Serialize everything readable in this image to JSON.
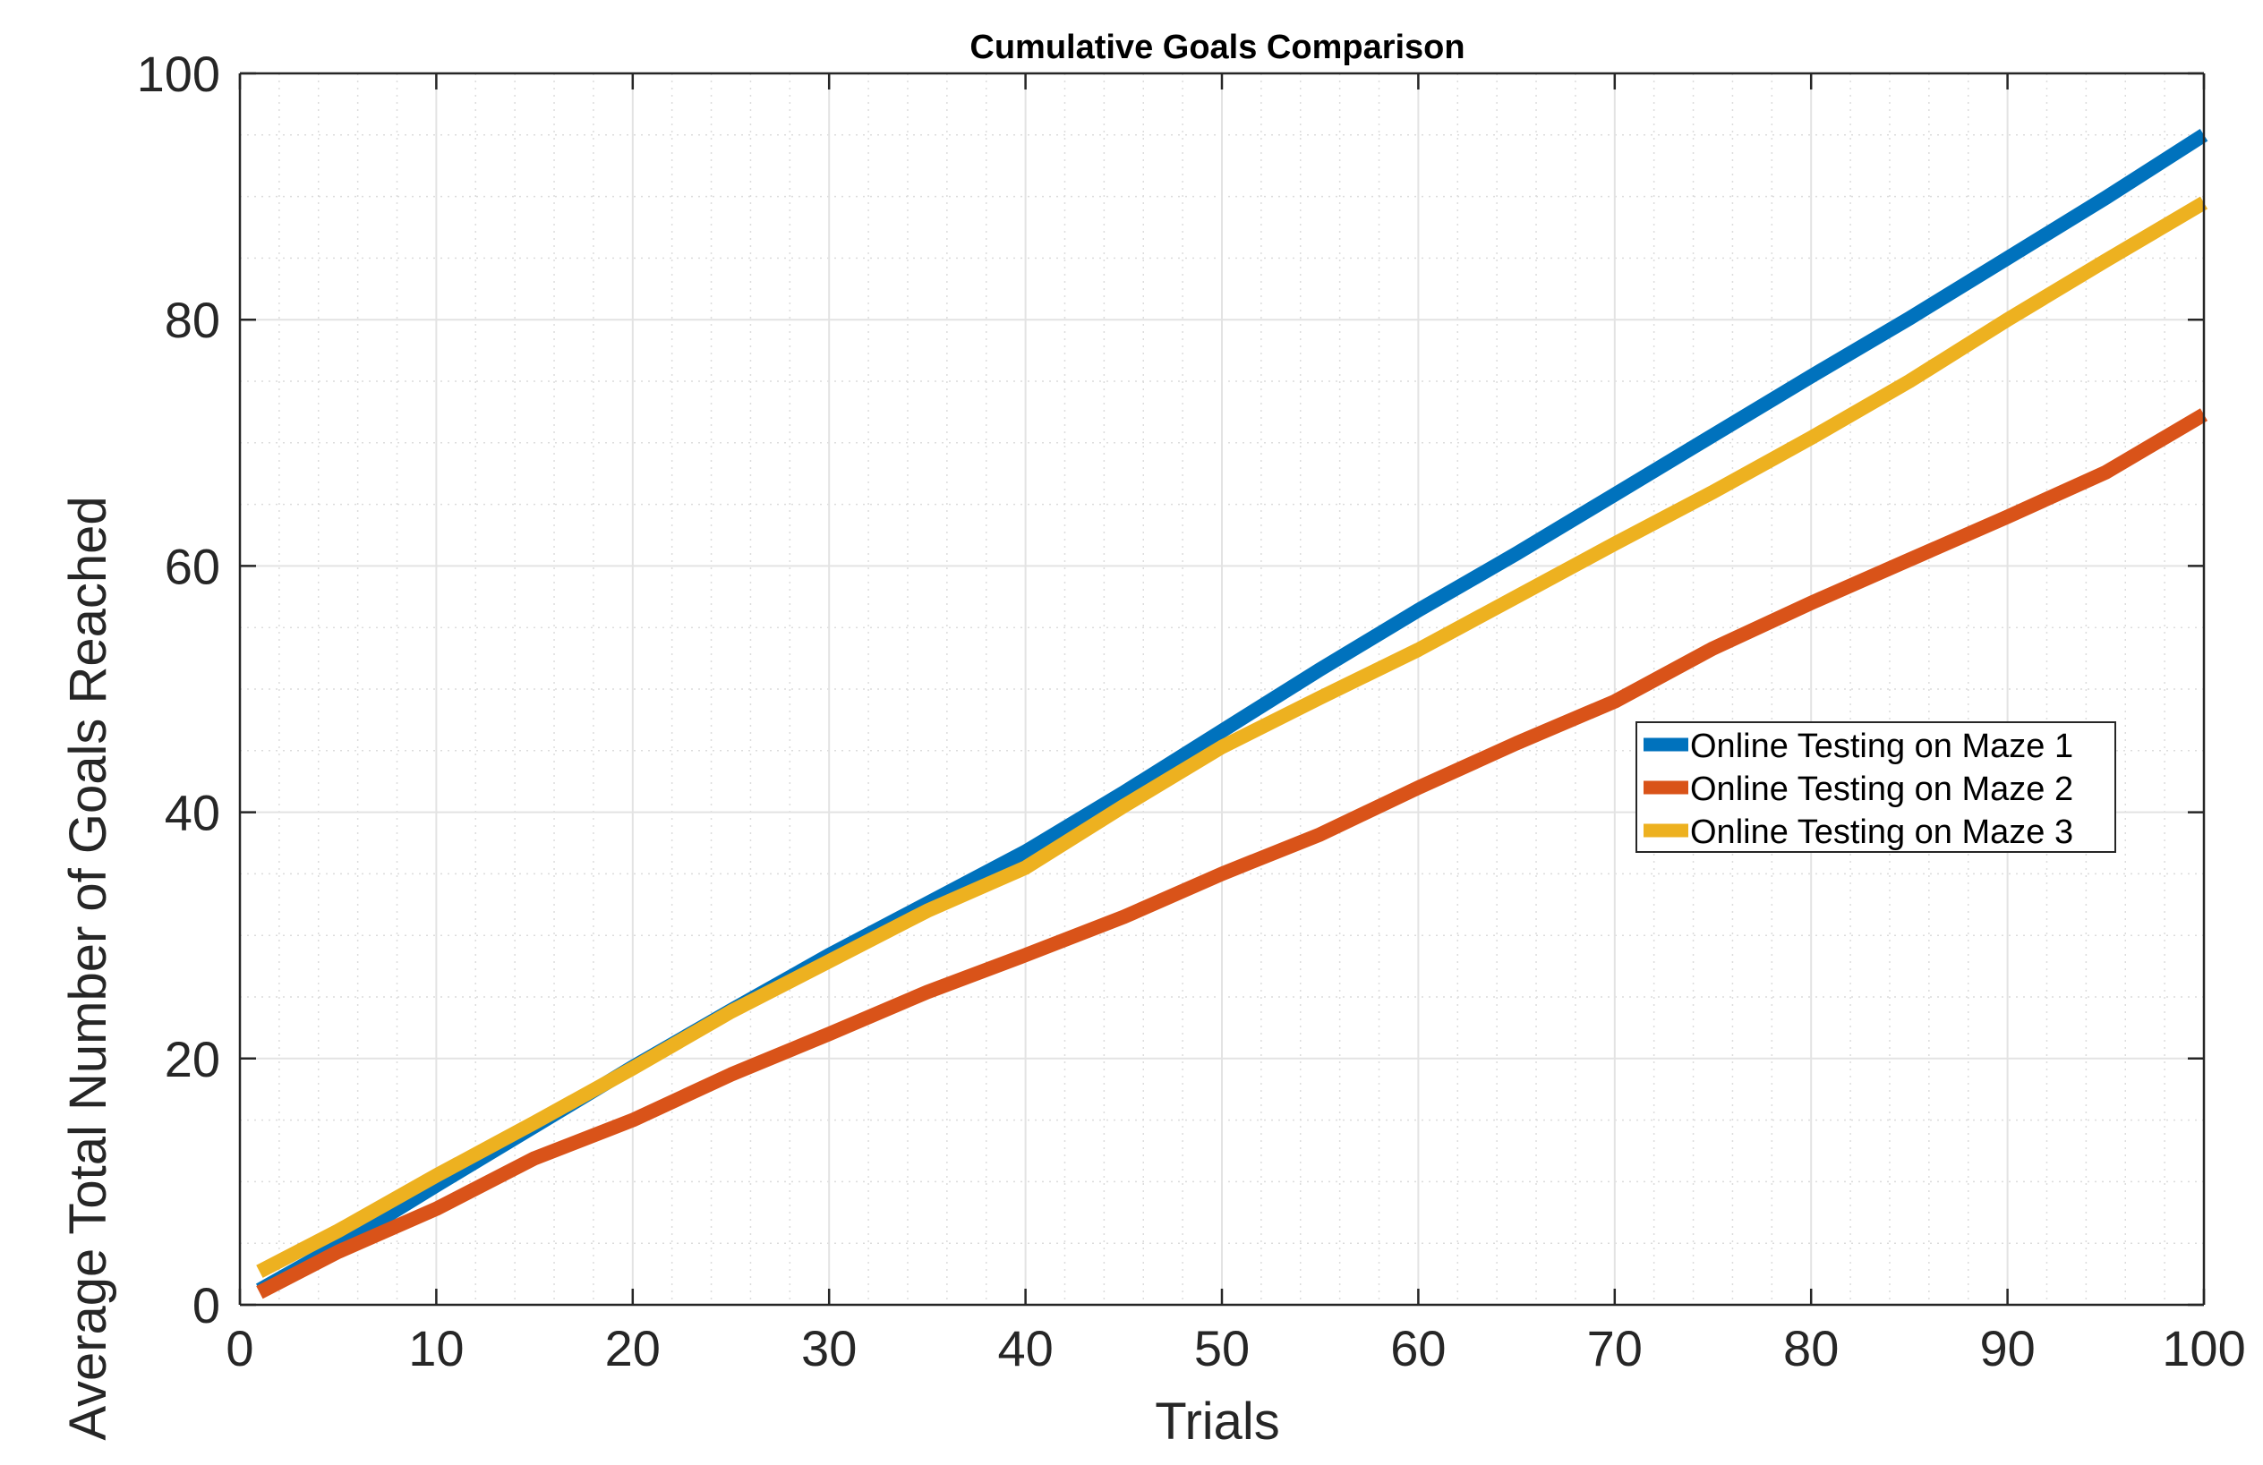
{
  "chart_data": {
    "type": "line",
    "title": "Cumulative Goals Comparison",
    "xlabel": "Trials",
    "ylabel": "Average Total Number of Goals Reached",
    "xlim": [
      0,
      100
    ],
    "ylim": [
      0,
      100
    ],
    "xticks": [
      0,
      10,
      20,
      30,
      40,
      50,
      60,
      70,
      80,
      90,
      100
    ],
    "yticks": [
      0,
      20,
      40,
      60,
      80,
      100
    ],
    "grid": true,
    "minor_grid": true,
    "legend_position": "center-right",
    "x": [
      1,
      5,
      10,
      15,
      20,
      25,
      30,
      35,
      40,
      45,
      50,
      55,
      60,
      65,
      70,
      75,
      80,
      85,
      90,
      95,
      100
    ],
    "series": [
      {
        "name": "Online Testing on Maze 1",
        "color": "#0072BD",
        "values": [
          1.2,
          4.8,
          9.7,
          14.5,
          19.3,
          23.9,
          28.4,
          32.6,
          36.8,
          41.6,
          46.6,
          51.6,
          56.4,
          61.0,
          65.8,
          70.6,
          75.4,
          80.1,
          85.0,
          89.9,
          95.0
        ]
      },
      {
        "name": "Online Testing on Maze 2",
        "color": "#D95319",
        "values": [
          1.0,
          4.3,
          7.8,
          11.9,
          15.0,
          18.7,
          22.0,
          25.4,
          28.4,
          31.5,
          35.0,
          38.2,
          42.0,
          45.6,
          49.0,
          53.3,
          57.0,
          60.5,
          64.0,
          67.6,
          72.3
        ]
      },
      {
        "name": "Online Testing on Maze 3",
        "color": "#EDB120",
        "values": [
          2.7,
          6.0,
          10.5,
          14.8,
          19.2,
          23.8,
          27.9,
          32.0,
          35.5,
          40.5,
          45.3,
          49.3,
          53.2,
          57.5,
          61.8,
          66.0,
          70.4,
          75.0,
          80.0,
          84.8,
          89.5
        ]
      }
    ]
  }
}
